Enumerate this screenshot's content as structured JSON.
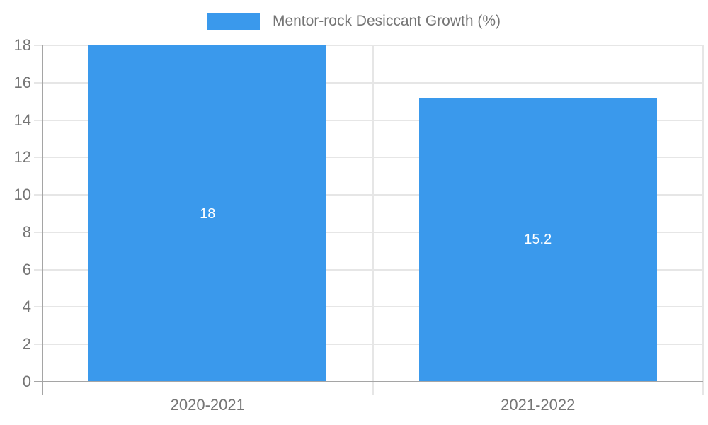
{
  "chart_data": {
    "type": "bar",
    "title": "Mentor-rock Desiccant Growth (%)",
    "legend_label": "Mentor-rock Desiccant Growth (%)",
    "categories": [
      "2020-2021",
      "2021-2022"
    ],
    "values": [
      18,
      15.2
    ],
    "value_labels": [
      "18",
      "15.2"
    ],
    "xlabel": "",
    "ylabel": "",
    "ylim": [
      0,
      18
    ],
    "ytick_step": 2,
    "ytick_labels": [
      "0",
      "2",
      "4",
      "6",
      "8",
      "10",
      "12",
      "14",
      "16",
      "18"
    ],
    "grid": true,
    "legend_position": "top-center",
    "colors": {
      "bar": "#3a99ec",
      "bar_value_text": "#ffffff",
      "grid": "#e6e6e6",
      "axis": "#a5a5a5",
      "tick_text": "#757575",
      "legend_text": "#757575"
    }
  }
}
